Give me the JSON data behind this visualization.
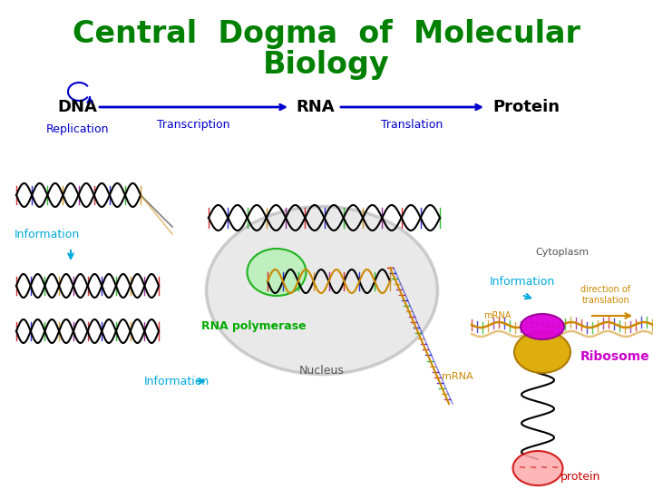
{
  "title_line1": "Central  Dogma  of  Molecular",
  "title_line2": "Biology",
  "title_color": "#008000",
  "title_fontsize": 24,
  "bg_color": "#ffffff",
  "arrow_color": "#0000cc",
  "label_dna": "DNA",
  "label_rna": "RNA",
  "label_protein": "Protein",
  "label_transcription": "Transcription",
  "label_translation": "Translation",
  "label_replication": "Replication",
  "label_information": "Information",
  "label_information2": "Information",
  "label_information3": "Information",
  "label_rna_pol": "RNA polymerase",
  "label_nucleus": "Nucleus",
  "label_mrna": "mRNA",
  "label_cytoplasm": "Cytoplasm",
  "label_ribosome": "Ribosome",
  "label_protein2": "protein",
  "label_direction": "direction of\ntranslation",
  "info_color": "#00aadd",
  "rna_pol_color": "#00aa00",
  "ribosome_color": "#ddaa00",
  "ribosome_top_color": "#dd00dd",
  "protein_color": "#cc0000",
  "mrna_color": "#cc8800",
  "nucleus_fill": "#d8d8d8",
  "nucleus_edge": "#aaaaaa",
  "rung_colors": [
    "#cc0000",
    "#0000cc",
    "#00aa00",
    "#cc8800",
    "#880088"
  ]
}
